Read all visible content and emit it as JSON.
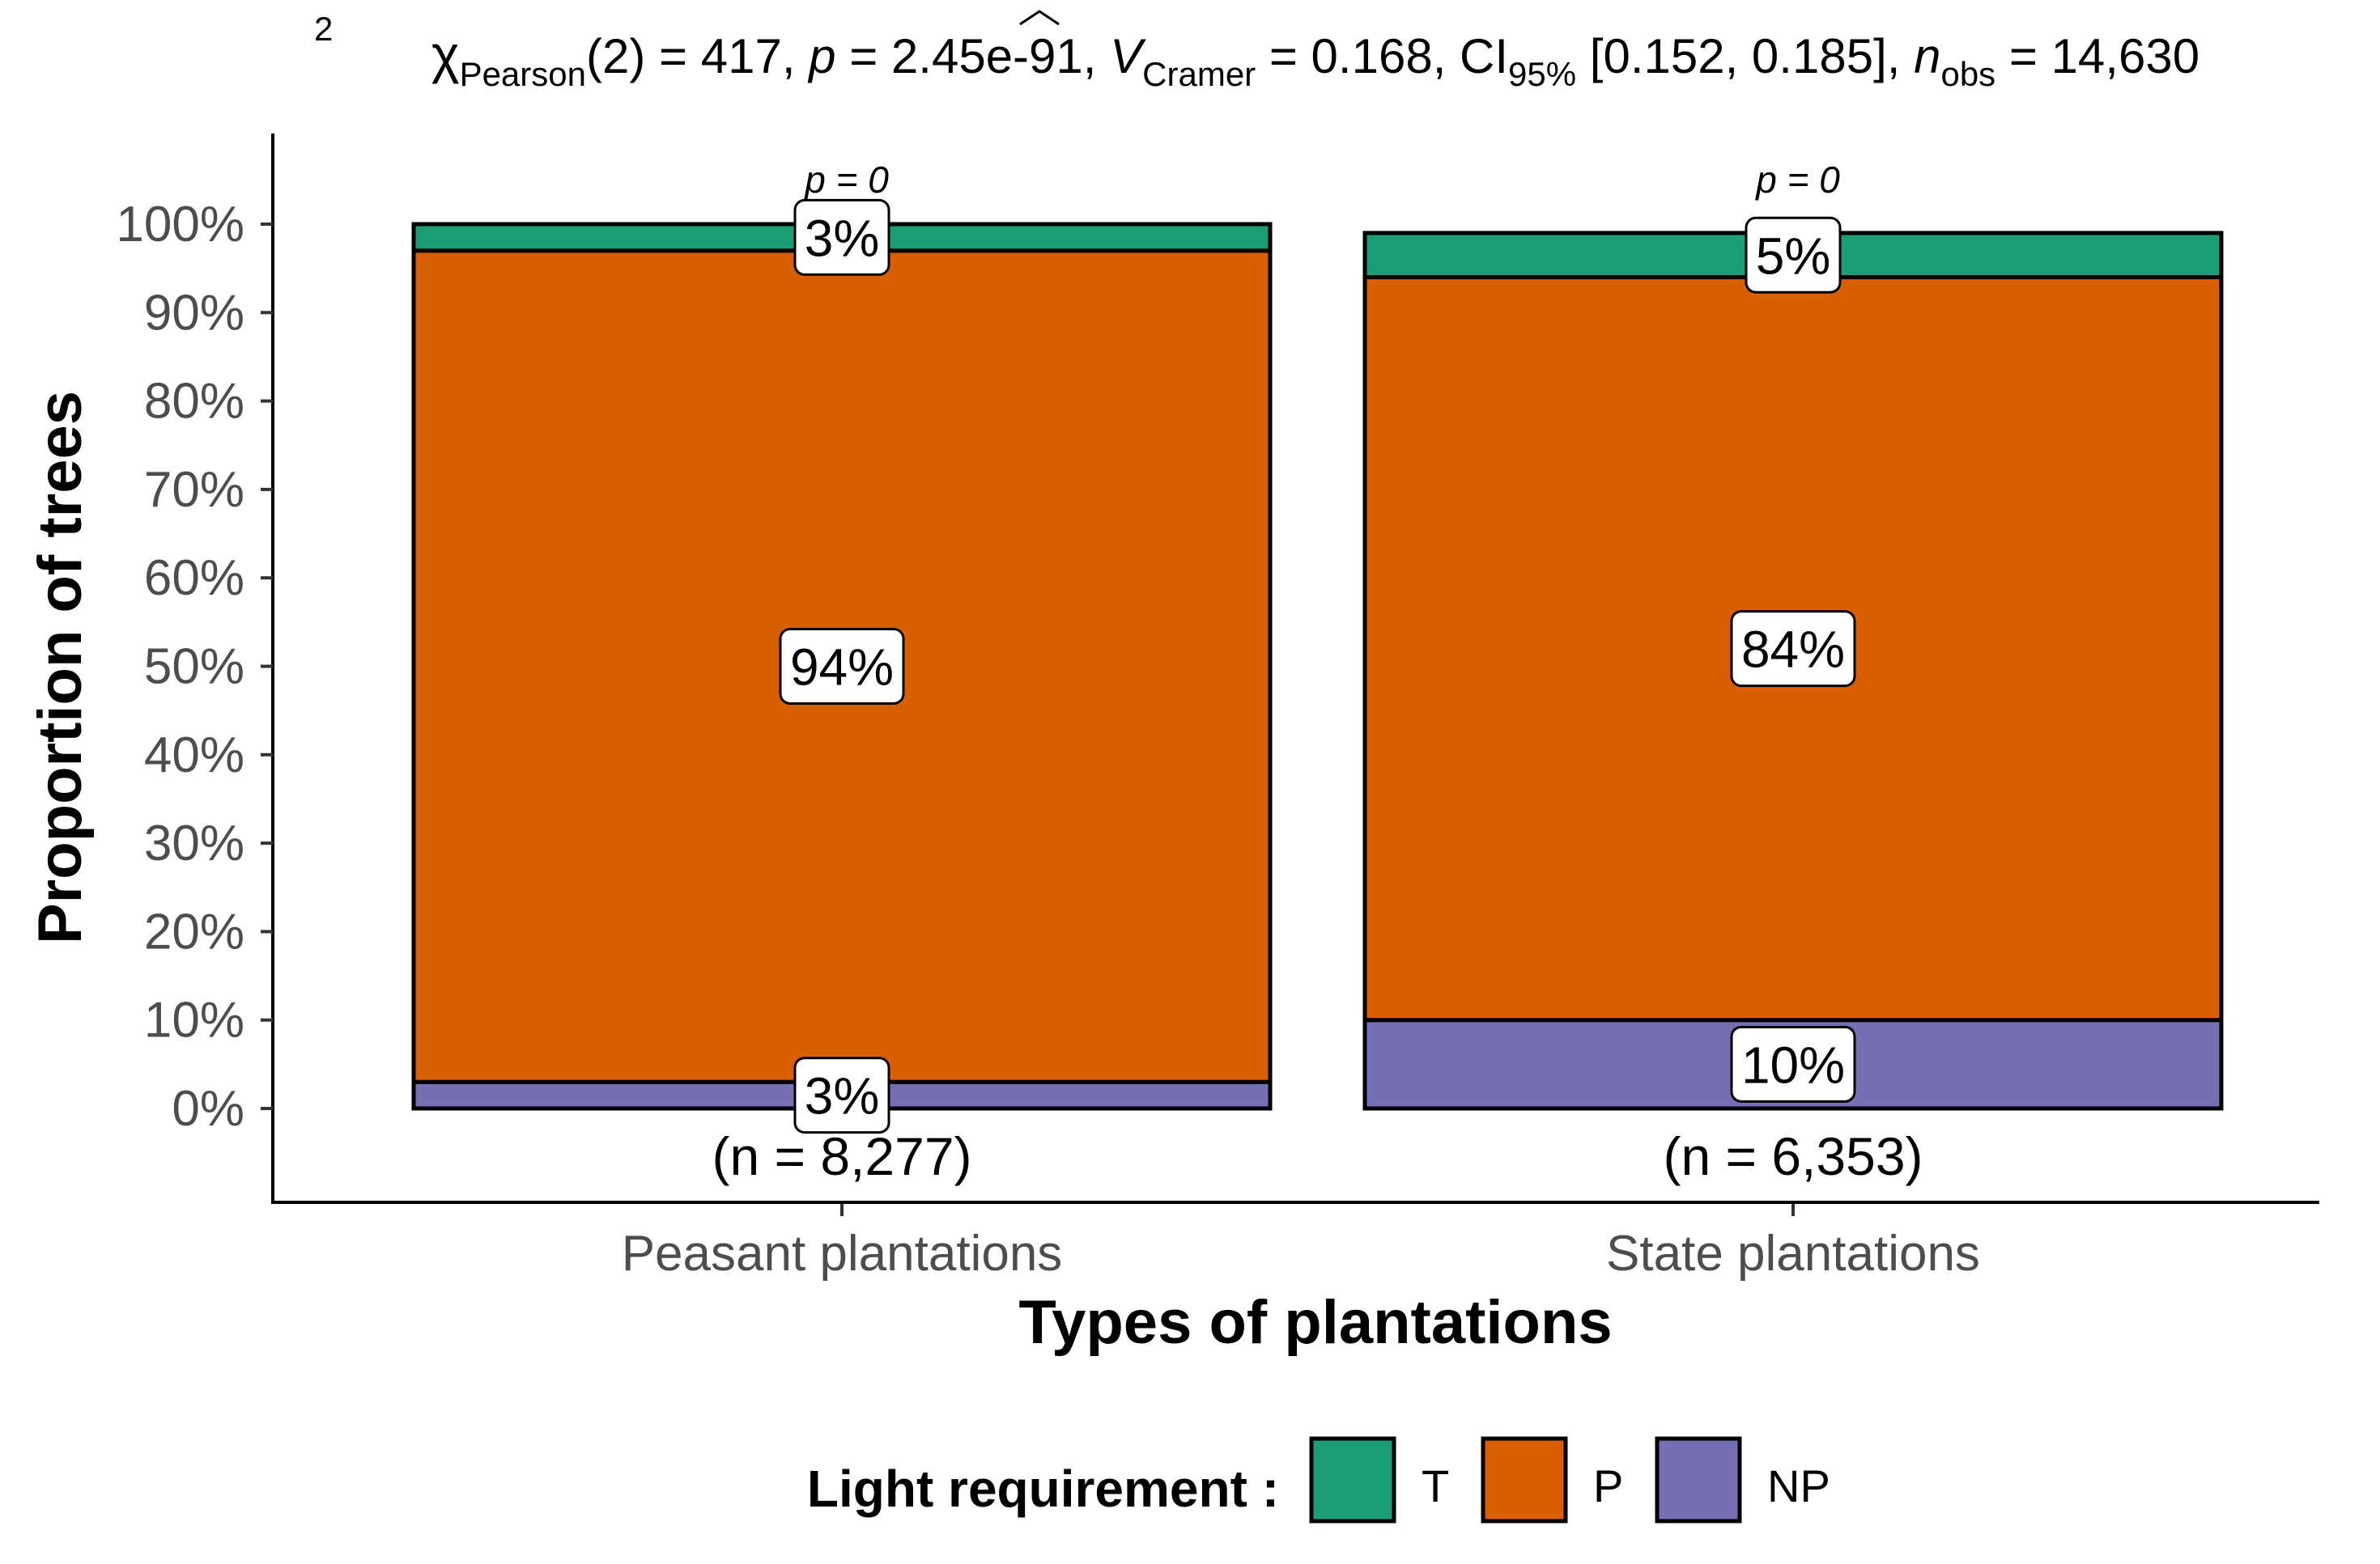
{
  "subtitle": {
    "chi": "χ",
    "chi_sup": "2",
    "chi_sub": "Pearson",
    "df": "(2) = 417, ",
    "p_sym": "p",
    "p_val": " = 2.45e-91, ",
    "v_sym": "V",
    "v_sub": "Cramer",
    "v_val": " = 0.168, CI",
    "ci_sub": "95%",
    "ci_val": " [0.152, 0.185], ",
    "n_sym": "n",
    "n_sub": "obs",
    "n_val": " = 14,630"
  },
  "chart_data": {
    "type": "bar",
    "stacked": true,
    "categories": [
      "Peasant plantations",
      "State plantations"
    ],
    "series": [
      {
        "name": "NP",
        "values": [
          3,
          10
        ],
        "color": "#7570b3"
      },
      {
        "name": "P",
        "values": [
          94,
          84
        ],
        "color": "#d95f02"
      },
      {
        "name": "T",
        "values": [
          3,
          5
        ],
        "color": "#1b9e77"
      }
    ],
    "data_labels": [
      [
        "3%",
        "94%",
        "3%"
      ],
      [
        "10%",
        "84%",
        "5%"
      ]
    ],
    "p_labels": [
      "p = 0",
      "p = 0"
    ],
    "n_labels": [
      "(n = 8,277)",
      "(n = 6,353)"
    ],
    "xlabel": "Types of plantations",
    "ylabel": "Proportion of trees",
    "ylim": [
      0,
      100
    ],
    "yticks": [
      "0%",
      "10%",
      "20%",
      "30%",
      "40%",
      "50%",
      "60%",
      "70%",
      "80%",
      "90%",
      "100%"
    ],
    "grid": false,
    "legend": {
      "title": "Light requirement :",
      "position": "bottom",
      "entries": [
        {
          "label": "T",
          "color": "#1b9e77"
        },
        {
          "label": "P",
          "color": "#d95f02"
        },
        {
          "label": "NP",
          "color": "#7570b3"
        }
      ]
    }
  }
}
